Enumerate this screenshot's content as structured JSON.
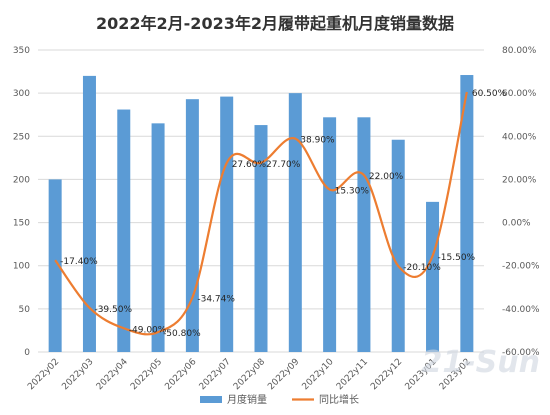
{
  "chart_data": {
    "type": "bar",
    "title": "2022年2月-2023年2月履带起重机月度销量数据",
    "categories": [
      "2022y02",
      "2022y03",
      "2022y04",
      "2022y05",
      "2022y06",
      "2022y07",
      "2022y08",
      "2022y09",
      "2022y10",
      "2022y11",
      "2022y12",
      "2023y01",
      "2023y02"
    ],
    "series": [
      {
        "name": "月度销量",
        "type": "bar",
        "axis": "left",
        "color": "#5b9bd5",
        "values": [
          200,
          320,
          281,
          265,
          293,
          296,
          263,
          300,
          272,
          272,
          246,
          174,
          321
        ]
      },
      {
        "name": "同比增长",
        "type": "line",
        "axis": "right",
        "color": "#ed7d31",
        "values": [
          -17.4,
          -39.5,
          -49.0,
          -50.8,
          -34.74,
          27.6,
          27.7,
          38.9,
          15.3,
          22.0,
          -20.1,
          -15.5,
          60.5
        ],
        "labels": [
          "-17.40%",
          "-39.50%",
          "-49.00%",
          "-50.80%",
          "-34.74%",
          "27.60%",
          "27.70%",
          "38.90%",
          "15.30%",
          "22.00%",
          "-20.10%",
          "-15.50%",
          "60.50%"
        ]
      }
    ],
    "y_left": {
      "min": 0,
      "max": 350,
      "ticks": [
        "0",
        "50",
        "100",
        "150",
        "200",
        "250",
        "300",
        "350"
      ]
    },
    "y_right": {
      "min": -60,
      "max": 80,
      "ticks": [
        "-60.00%",
        "-40.00%",
        "-20.00%",
        "0.00%",
        "20.00%",
        "40.00%",
        "60.00%",
        "80.00%"
      ]
    },
    "grid": true,
    "legend_position": "bottom"
  },
  "watermark": "21-Sun"
}
